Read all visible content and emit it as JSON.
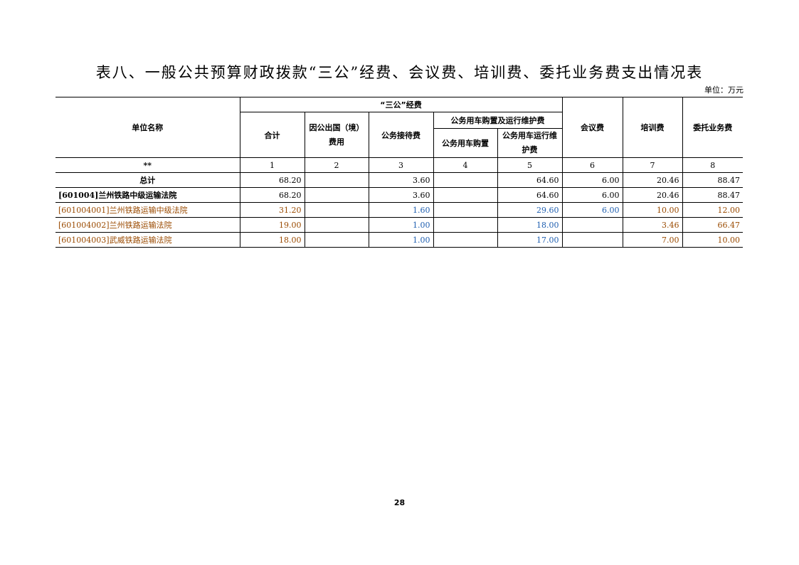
{
  "title": "表八、一般公共预算财政拨款“三公”经费、会议费、培训费、委托业务费支出情况表",
  "unit": "单位：万元",
  "headers": {
    "name": "单位名称",
    "sangong": "“三公”经费",
    "total": "合计",
    "abroad": "因公出国（境）费用",
    "reception": "公务接待费",
    "car": "公务用车购置及运行维护费",
    "car_buy": "公务用车购置",
    "car_run": "公务用车运行维护费",
    "meeting": "会议费",
    "training": "培训费",
    "commission": "委托业务费"
  },
  "index_row": [
    "**",
    "1",
    "2",
    "3",
    "4",
    "5",
    "6",
    "7",
    "8"
  ],
  "rows": [
    {
      "name": "总计",
      "v": [
        "68.20",
        "",
        "3.60",
        "",
        "64.60",
        "6.00",
        "20.46",
        "88.47"
      ]
    },
    {
      "name": "[601004]兰州铁路中级运输法院",
      "v": [
        "68.20",
        "",
        "3.60",
        "",
        "64.60",
        "6.00",
        "20.46",
        "88.47"
      ]
    },
    {
      "name": "[601004001]兰州铁路运输中级法院",
      "v": [
        "31.20",
        "",
        "1.60",
        "",
        "29.60",
        "6.00",
        "10.00",
        "12.00"
      ]
    },
    {
      "name": "[601004002]兰州铁路运输法院",
      "v": [
        "19.00",
        "",
        "1.00",
        "",
        "18.00",
        "",
        "3.46",
        "66.47"
      ]
    },
    {
      "name": "[601004003]武威铁路运输法院",
      "v": [
        "18.00",
        "",
        "1.00",
        "",
        "17.00",
        "",
        "7.00",
        "10.00"
      ]
    }
  ],
  "colors": {
    "brown": "#9a4a00",
    "blue": "#1f5fb0"
  },
  "page_number": "28"
}
